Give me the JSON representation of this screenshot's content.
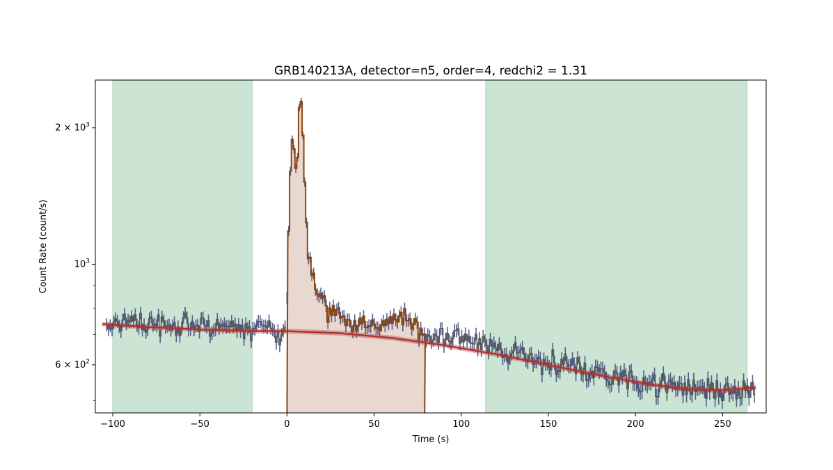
{
  "chart_data": {
    "type": "line",
    "title": "GRB140213A, detector=n5, order=4, redchi2 = 1.31",
    "xlabel": "Time (s)",
    "ylabel": "Count Rate (count/s)",
    "xlim": [
      -110,
      275
    ],
    "ylim": [
      470,
      2550
    ],
    "yscale": "log",
    "x_ticks": [
      -100,
      -50,
      0,
      50,
      100,
      150,
      200,
      250
    ],
    "x_tick_labels": [
      "−100",
      "−50",
      "0",
      "50",
      "100",
      "150",
      "200",
      "250"
    ],
    "y_ticks": [
      600,
      1000,
      2000
    ],
    "y_tick_labels": [
      {
        "mant": "6",
        "exp": "2"
      },
      {
        "mant": "",
        "exp": "3"
      },
      {
        "mant": "2",
        "exp": "3"
      }
    ],
    "background_intervals": [
      [
        -100,
        -20
      ],
      [
        114,
        264
      ]
    ],
    "source_interval": [
      0,
      79
    ],
    "light_curve": {
      "x_range": [
        -104,
        268
      ],
      "bin_width": 1.024,
      "values": [
        {
          "t": -104,
          "r": 735
        },
        {
          "t": -90,
          "r": 745
        },
        {
          "t": -75,
          "r": 740
        },
        {
          "t": -60,
          "r": 735
        },
        {
          "t": -45,
          "r": 730
        },
        {
          "t": -30,
          "r": 725
        },
        {
          "t": -20,
          "r": 722
        },
        {
          "t": -10,
          "r": 718
        },
        {
          "t": -1,
          "r": 715
        },
        {
          "t": 0,
          "r": 1000
        },
        {
          "t": 1,
          "r": 1400
        },
        {
          "t": 2,
          "r": 1880
        },
        {
          "t": 3,
          "r": 1900
        },
        {
          "t": 4,
          "r": 1780
        },
        {
          "t": 5,
          "r": 1500
        },
        {
          "t": 6,
          "r": 1900
        },
        {
          "t": 7,
          "r": 2400
        },
        {
          "t": 8,
          "r": 2200
        },
        {
          "t": 9,
          "r": 1750
        },
        {
          "t": 10,
          "r": 1350
        },
        {
          "t": 11,
          "r": 1180
        },
        {
          "t": 12,
          "r": 1050
        },
        {
          "t": 14,
          "r": 930
        },
        {
          "t": 17,
          "r": 860
        },
        {
          "t": 20,
          "r": 820
        },
        {
          "t": 25,
          "r": 790
        },
        {
          "t": 30,
          "r": 770
        },
        {
          "t": 35,
          "r": 750
        },
        {
          "t": 40,
          "r": 735
        },
        {
          "t": 45,
          "r": 722
        },
        {
          "t": 50,
          "r": 720
        },
        {
          "t": 55,
          "r": 740
        },
        {
          "t": 60,
          "r": 760
        },
        {
          "t": 65,
          "r": 770
        },
        {
          "t": 70,
          "r": 750
        },
        {
          "t": 75,
          "r": 720
        },
        {
          "t": 79,
          "r": 700
        },
        {
          "t": 90,
          "r": 690
        },
        {
          "t": 100,
          "r": 680
        },
        {
          "t": 115,
          "r": 660
        },
        {
          "t": 130,
          "r": 640
        },
        {
          "t": 150,
          "r": 615
        },
        {
          "t": 175,
          "r": 580
        },
        {
          "t": 200,
          "r": 555
        },
        {
          "t": 225,
          "r": 535
        },
        {
          "t": 250,
          "r": 530
        },
        {
          "t": 268,
          "r": 535
        }
      ]
    },
    "background_fit": {
      "order": 4,
      "x": [
        -106,
        -80,
        -50,
        -20,
        0,
        30,
        60,
        90,
        120,
        150,
        180,
        210,
        230,
        250,
        269
      ],
      "y": [
        738,
        727,
        718,
        712,
        712,
        705,
        688,
        663,
        633,
        600,
        568,
        542,
        530,
        527,
        535
      ]
    },
    "colors": {
      "background_interval": "#cce4d4",
      "background_interval_edge": "#a9cfb4",
      "source_fill": "#e8d8cf",
      "source_line": "#8b4513",
      "data_line": "#555555",
      "data_error": "#2f3b6e",
      "fit_line": "#b03030"
    }
  }
}
